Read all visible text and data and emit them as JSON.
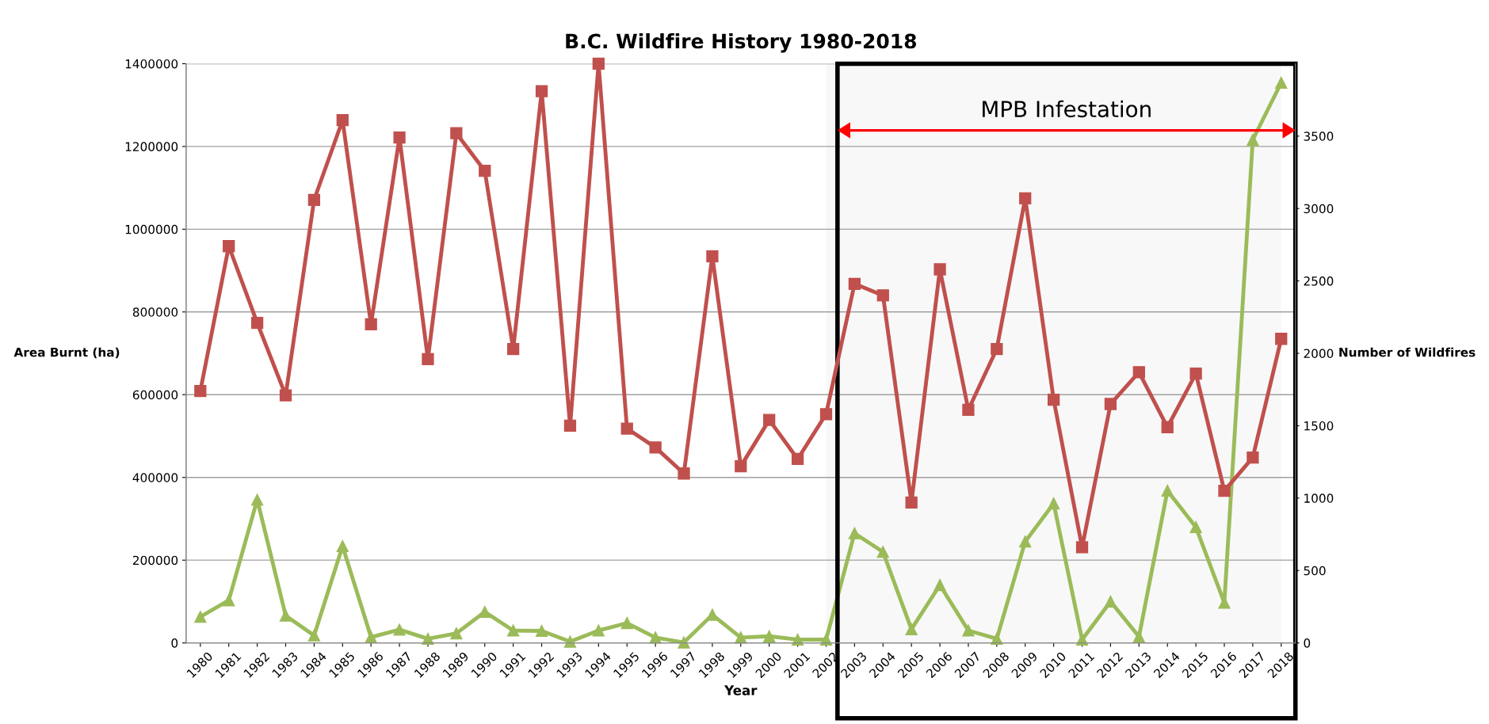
{
  "chart_data": {
    "type": "line",
    "title": "B.C. Wildfire History 1980-2018",
    "xlabel": "Year",
    "ylabel": "Area Burnt (ha)",
    "y2label": "Number of Wildfires",
    "categories": [
      "1980",
      "1981",
      "1982",
      "1983",
      "1984",
      "1985",
      "1986",
      "1987",
      "1988",
      "1989",
      "1990",
      "1991",
      "1992",
      "1993",
      "1994",
      "1995",
      "1996",
      "1997",
      "1998",
      "1999",
      "2000",
      "2001",
      "2002",
      "2003",
      "2004",
      "2005",
      "2006",
      "2007",
      "2008",
      "2009",
      "2010",
      "2011",
      "2012",
      "2013",
      "2014",
      "2015",
      "2016",
      "2017",
      "2018"
    ],
    "series": [
      {
        "color": "#c0504d",
        "marker": "square",
        "axis": "y2",
        "values": [
          1740,
          2740,
          2210,
          1710,
          3060,
          3610,
          2200,
          3490,
          1960,
          3520,
          3260,
          2030,
          3810,
          1500,
          4000,
          1480,
          1350,
          1170,
          2670,
          1220,
          1540,
          1270,
          1580,
          2480,
          2400,
          970,
          2580,
          1610,
          2030,
          3070,
          1680,
          660,
          1650,
          1870,
          1490,
          1860,
          1050,
          1280,
          2100
        ]
      },
      {
        "color": "#9bbb59",
        "marker": "triangle",
        "axis": "y",
        "values": [
          63000,
          103000,
          346000,
          66000,
          18000,
          234000,
          14000,
          32000,
          10000,
          23000,
          75000,
          30000,
          29000,
          3000,
          30000,
          48000,
          13000,
          1000,
          68000,
          13000,
          16000,
          8000,
          8000,
          265000,
          220000,
          33000,
          140000,
          30000,
          10000,
          245000,
          337000,
          8000,
          100000,
          15000,
          368000,
          280000,
          97000,
          1216000,
          1354000
        ]
      }
    ],
    "ylim": [
      0,
      1400000
    ],
    "yticks": [
      0,
      200000,
      400000,
      600000,
      800000,
      1000000,
      1200000,
      1400000
    ],
    "y2lim": [
      0,
      4000
    ],
    "y2ticks": [
      0,
      500,
      1000,
      1500,
      2000,
      2500,
      3000,
      3500
    ],
    "bands": [
      {
        "axis": "x",
        "from": "2002",
        "to": "2018",
        "label": "MPB Infestation"
      }
    ],
    "grid": "y",
    "legend": false,
    "line_style": "solid"
  }
}
